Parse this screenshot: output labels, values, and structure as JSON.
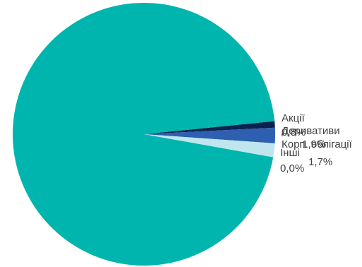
{
  "chart_data": {
    "type": "pie",
    "slices": [
      {
        "label": "Акції",
        "value_label": "0,8%",
        "value": 0.8,
        "color": "#0b2250"
      },
      {
        "label": "Деривативи",
        "value_label": "1,9%",
        "value": 1.9,
        "color": "#2e5fb0"
      },
      {
        "label": "Корп. облігації",
        "value_label": "1,7%",
        "value": 1.7,
        "color": "#bfe6ee"
      },
      {
        "label": "Інші",
        "value_label": "0,0%",
        "value": 0.0,
        "color": "#1f8fa0"
      },
      {
        "label": "",
        "value_label": "",
        "value": 95.6,
        "color": "#00b5ad"
      }
    ]
  }
}
